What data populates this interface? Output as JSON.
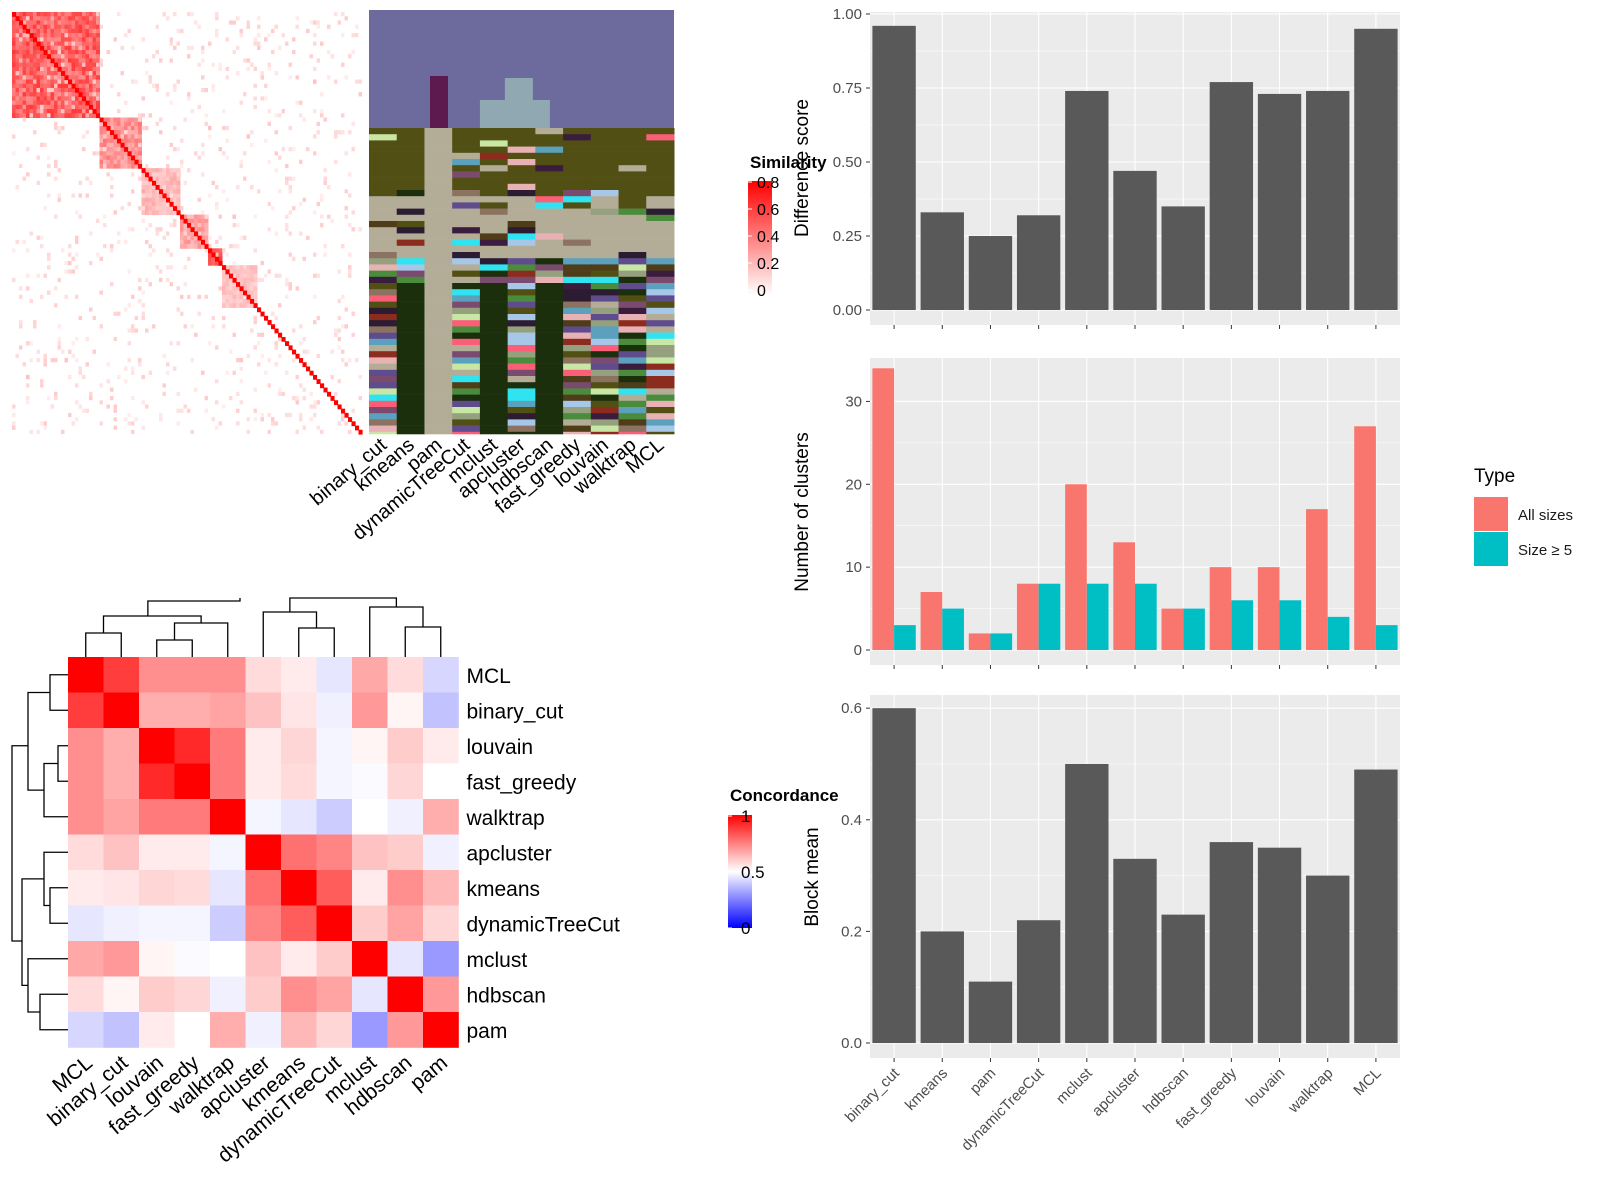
{
  "methods": [
    "binary_cut",
    "kmeans",
    "pam",
    "dynamicTreeCut",
    "mclust",
    "apcluster",
    "hdbscan",
    "fast_greedy",
    "louvain",
    "walktrap",
    "MCL"
  ],
  "similarity_legend": {
    "title": "Similarity",
    "ticks": [
      "0",
      "0.2",
      "0.4",
      "0.6",
      "0.8"
    ]
  },
  "concordance": {
    "legend": {
      "title": "Concordance",
      "ticks": [
        "0",
        "0.5",
        "1"
      ]
    },
    "order": [
      "MCL",
      "binary_cut",
      "louvain",
      "fast_greedy",
      "walktrap",
      "apcluster",
      "kmeans",
      "dynamicTreeCut",
      "mclust",
      "hdbscan",
      "pam"
    ],
    "matrix": [
      [
        1.0,
        0.88,
        0.72,
        0.72,
        0.72,
        0.57,
        0.54,
        0.45,
        0.67,
        0.57,
        0.42
      ],
      [
        0.88,
        1.0,
        0.66,
        0.66,
        0.68,
        0.62,
        0.55,
        0.47,
        0.7,
        0.52,
        0.38
      ],
      [
        0.72,
        0.66,
        1.0,
        0.92,
        0.76,
        0.54,
        0.58,
        0.48,
        0.52,
        0.6,
        0.54
      ],
      [
        0.72,
        0.66,
        0.92,
        1.0,
        0.76,
        0.54,
        0.57,
        0.48,
        0.49,
        0.58,
        0.5
      ],
      [
        0.72,
        0.68,
        0.76,
        0.76,
        1.0,
        0.48,
        0.45,
        0.4,
        0.5,
        0.47,
        0.66
      ],
      [
        0.57,
        0.62,
        0.54,
        0.54,
        0.48,
        1.0,
        0.78,
        0.74,
        0.62,
        0.6,
        0.47
      ],
      [
        0.54,
        0.55,
        0.58,
        0.57,
        0.45,
        0.78,
        1.0,
        0.82,
        0.54,
        0.72,
        0.64
      ],
      [
        0.45,
        0.47,
        0.48,
        0.48,
        0.4,
        0.74,
        0.82,
        1.0,
        0.6,
        0.68,
        0.58
      ],
      [
        0.67,
        0.7,
        0.52,
        0.49,
        0.5,
        0.62,
        0.54,
        0.6,
        1.0,
        0.45,
        0.3
      ],
      [
        0.57,
        0.52,
        0.6,
        0.58,
        0.47,
        0.6,
        0.72,
        0.68,
        0.45,
        1.0,
        0.7
      ],
      [
        0.42,
        0.38,
        0.54,
        0.5,
        0.66,
        0.47,
        0.64,
        0.58,
        0.3,
        0.7,
        1.0
      ]
    ]
  },
  "chart_data": [
    {
      "type": "bar",
      "ylabel": "Difference score",
      "categories": [
        "binary_cut",
        "kmeans",
        "pam",
        "dynamicTreeCut",
        "mclust",
        "apcluster",
        "hdbscan",
        "fast_greedy",
        "louvain",
        "walktrap",
        "MCL"
      ],
      "values": [
        0.96,
        0.33,
        0.25,
        0.32,
        0.74,
        0.47,
        0.35,
        0.77,
        0.73,
        0.74,
        0.95
      ],
      "ylim": [
        0,
        1.0
      ],
      "yticks": [
        "0.00",
        "0.25",
        "0.50",
        "0.75",
        "1.00"
      ]
    },
    {
      "type": "bar",
      "ylabel": "Number of clusters",
      "categories": [
        "binary_cut",
        "kmeans",
        "pam",
        "dynamicTreeCut",
        "mclust",
        "apcluster",
        "hdbscan",
        "fast_greedy",
        "louvain",
        "walktrap",
        "MCL"
      ],
      "series": [
        {
          "name": "All sizes",
          "color": "#F8766D",
          "values": [
            34,
            7,
            2,
            8,
            20,
            13,
            5,
            10,
            10,
            17,
            27
          ]
        },
        {
          "name": "Size ≥ 5",
          "color": "#00BFC4",
          "values": [
            3,
            5,
            2,
            8,
            8,
            8,
            5,
            6,
            6,
            4,
            3
          ]
        }
      ],
      "ylim": [
        0,
        35
      ],
      "yticks": [
        "0",
        "10",
        "20",
        "30"
      ],
      "legend_title": "Type",
      "legend_position": "right"
    },
    {
      "type": "bar",
      "ylabel": "Block mean",
      "categories": [
        "binary_cut",
        "kmeans",
        "pam",
        "dynamicTreeCut",
        "mclust",
        "apcluster",
        "hdbscan",
        "fast_greedy",
        "louvain",
        "walktrap",
        "MCL"
      ],
      "values": [
        0.6,
        0.2,
        0.11,
        0.22,
        0.5,
        0.33,
        0.23,
        0.36,
        0.35,
        0.3,
        0.49
      ],
      "ylim": [
        0,
        0.62
      ],
      "yticks": [
        "0.0",
        "0.2",
        "0.4",
        "0.6"
      ]
    }
  ],
  "colors": {
    "panel_bg": "#EBEBEB",
    "bar_fill": "#595959",
    "similarity_high": "#FF0000",
    "concordance_low": "#0000FF"
  }
}
